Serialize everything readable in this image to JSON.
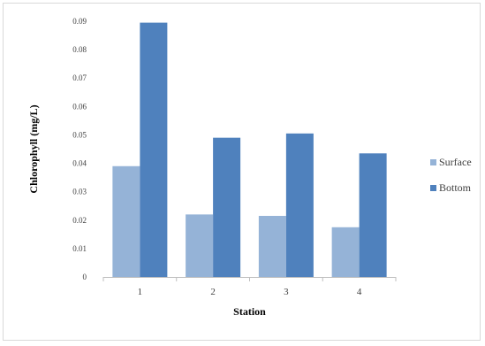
{
  "colors": {
    "surface": "#95b3d7",
    "bottom": "#4f81bd",
    "gridline": "#d9d9d9",
    "axis": "#bfbfbf"
  },
  "chart_data": {
    "type": "bar",
    "title": "",
    "xlabel": "Station",
    "ylabel": "Chlorophyll  (mg/L)",
    "categories": [
      "1",
      "2",
      "3",
      "4"
    ],
    "series": [
      {
        "name": "Surface",
        "values": [
          0.039,
          0.022,
          0.0215,
          0.0175
        ]
      },
      {
        "name": "Bottom",
        "values": [
          0.0895,
          0.049,
          0.0505,
          0.0435
        ]
      }
    ],
    "ylim": [
      0,
      0.09
    ],
    "yticks": [
      "0",
      "0.01",
      "0.02",
      "0.03",
      "0.04",
      "0.05",
      "0.06",
      "0.07",
      "0.08",
      "0.09"
    ],
    "grid": false,
    "legend_position": "right"
  }
}
